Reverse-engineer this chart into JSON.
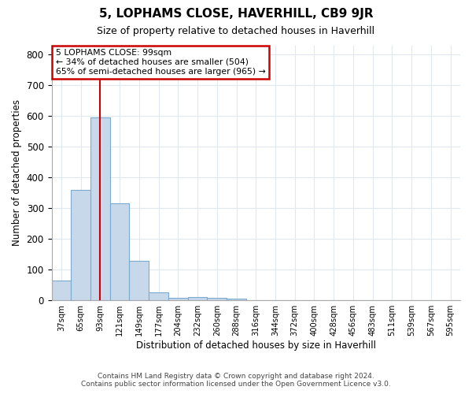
{
  "title": "5, LOPHAMS CLOSE, HAVERHILL, CB9 9JR",
  "subtitle": "Size of property relative to detached houses in Haverhill",
  "xlabel": "Distribution of detached houses by size in Haverhill",
  "ylabel": "Number of detached properties",
  "footer_line1": "Contains HM Land Registry data © Crown copyright and database right 2024.",
  "footer_line2": "Contains public sector information licensed under the Open Government Licence v3.0.",
  "bin_labels": [
    "37sqm",
    "65sqm",
    "93sqm",
    "121sqm",
    "149sqm",
    "177sqm",
    "204sqm",
    "232sqm",
    "260sqm",
    "288sqm",
    "316sqm",
    "344sqm",
    "372sqm",
    "400sqm",
    "428sqm",
    "456sqm",
    "483sqm",
    "511sqm",
    "539sqm",
    "567sqm",
    "595sqm"
  ],
  "bar_values": [
    65,
    360,
    595,
    315,
    130,
    25,
    8,
    10,
    8,
    5,
    0,
    0,
    0,
    0,
    0,
    0,
    0,
    0,
    0,
    0,
    0
  ],
  "bar_color": "#c8d8eb",
  "bar_edge_color": "#7aaace",
  "property_line_x": 2,
  "annotation_title": "5 LOPHAMS CLOSE: 99sqm",
  "annotation_line2": "← 34% of detached houses are smaller (504)",
  "annotation_line3": "65% of semi-detached houses are larger (965) →",
  "annotation_box_facecolor": "#ffffff",
  "annotation_box_edgecolor": "#cc0000",
  "line_color": "#cc0000",
  "ylim": [
    0,
    830
  ],
  "background_color": "#ffffff",
  "plot_bg_color": "#ffffff",
  "grid_color": "#e0e8f0",
  "n_bars": 21
}
